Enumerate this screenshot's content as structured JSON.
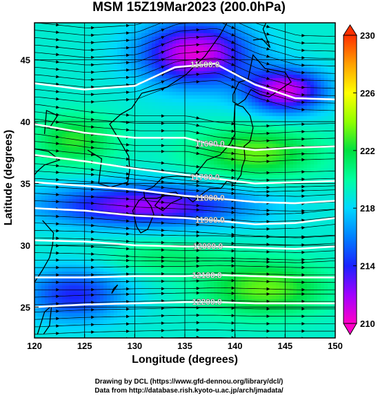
{
  "title": "MSM 15Z19Mar2023 (200.0hPa)",
  "credits": {
    "line1": "Drawing by DCL (https://www.gfd-dennou.org/library/dcl/)",
    "line2": "Data from http://database.rish.kyoto-u.ac.jp/arch/jmadata/"
  },
  "chart_data": {
    "type": "heatmap",
    "xlabel": "Longitude (degrees)",
    "ylabel": "Latitude  (degrees)",
    "xlim": [
      120,
      150
    ],
    "ylim": [
      22.5,
      48
    ],
    "xticks": [
      120,
      125,
      130,
      135,
      140,
      145,
      150
    ],
    "yticks": [
      25,
      30,
      35,
      40,
      45
    ],
    "colorbar": {
      "min": 210,
      "max": 230,
      "ticks": [
        210,
        214,
        218,
        222,
        226,
        230
      ],
      "colors": [
        "#ff00c8",
        "#a000ff",
        "#1a22ff",
        "#0080ff",
        "#00d8ff",
        "#00ffa0",
        "#00e040",
        "#90ff00",
        "#ffff00",
        "#ffa000",
        "#ff3000"
      ]
    },
    "contours": [
      {
        "label": "11500.0",
        "label_lon": 137.0,
        "points": [
          [
            120,
            43.1
          ],
          [
            125,
            42.6
          ],
          [
            130,
            42.9
          ],
          [
            134,
            44.4
          ],
          [
            138,
            44.7
          ],
          [
            142,
            43.0
          ],
          [
            146,
            41.9
          ],
          [
            150,
            41.8
          ]
        ]
      },
      {
        "label": "11600.0",
        "label_lon": 137.5,
        "points": [
          [
            120,
            39.8
          ],
          [
            125,
            39.1
          ],
          [
            130,
            38.7
          ],
          [
            135,
            38.7
          ],
          [
            138,
            38.1
          ],
          [
            142,
            37.7
          ],
          [
            146,
            37.9
          ],
          [
            150,
            38.0
          ]
        ]
      },
      {
        "label": "11700.0",
        "label_lon": 137.0,
        "points": [
          [
            120,
            37.3
          ],
          [
            125,
            36.8
          ],
          [
            130,
            36.2
          ],
          [
            135,
            35.7
          ],
          [
            138,
            35.4
          ],
          [
            142,
            35.0
          ],
          [
            146,
            35.1
          ],
          [
            150,
            35.2
          ]
        ]
      },
      {
        "label": "11800.0",
        "label_lon": 137.5,
        "points": [
          [
            120,
            35.1
          ],
          [
            125,
            34.8
          ],
          [
            130,
            34.5
          ],
          [
            135,
            34.0
          ],
          [
            138,
            33.8
          ],
          [
            142,
            33.5
          ],
          [
            146,
            33.4
          ],
          [
            150,
            33.6
          ]
        ]
      },
      {
        "label": "11900.0",
        "label_lon": 137.5,
        "points": [
          [
            120,
            33.0
          ],
          [
            125,
            32.8
          ],
          [
            130,
            32.4
          ],
          [
            135,
            32.2
          ],
          [
            138,
            32.0
          ],
          [
            142,
            31.7
          ],
          [
            146,
            31.8
          ],
          [
            150,
            32.2
          ]
        ]
      },
      {
        "label": "12000.0",
        "label_lon": 137.3,
        "points": [
          [
            120,
            30.4
          ],
          [
            125,
            30.3
          ],
          [
            130,
            30.0
          ],
          [
            135,
            29.9
          ],
          [
            138,
            29.9
          ],
          [
            142,
            29.8
          ],
          [
            146,
            29.7
          ],
          [
            150,
            29.9
          ]
        ]
      },
      {
        "label": "12100.0",
        "label_lon": 137.2,
        "points": [
          [
            120,
            27.4
          ],
          [
            125,
            27.4
          ],
          [
            130,
            27.5
          ],
          [
            135,
            27.5
          ],
          [
            138,
            27.6
          ],
          [
            142,
            27.5
          ],
          [
            146,
            27.4
          ],
          [
            150,
            27.4
          ]
        ]
      },
      {
        "label": "12200.0",
        "label_lon": 137.2,
        "points": [
          [
            120,
            25.0
          ],
          [
            125,
            25.2
          ],
          [
            130,
            25.3
          ],
          [
            135,
            25.4
          ],
          [
            138,
            25.4
          ],
          [
            142,
            25.3
          ],
          [
            146,
            25.3
          ],
          [
            150,
            25.3
          ]
        ]
      }
    ],
    "coastlines": [
      [
        [
          140.0,
          41.4
        ],
        [
          140.8,
          41.2
        ],
        [
          141.5,
          40.5
        ],
        [
          141.8,
          39.5
        ],
        [
          141.5,
          38.4
        ],
        [
          140.9,
          38.0
        ],
        [
          141.0,
          37.0
        ],
        [
          140.7,
          36.3
        ],
        [
          140.6,
          35.7
        ],
        [
          140.0,
          35.0
        ],
        [
          139.2,
          35.2
        ],
        [
          138.6,
          34.6
        ],
        [
          137.5,
          34.6
        ],
        [
          136.8,
          34.2
        ],
        [
          135.8,
          33.5
        ],
        [
          135.2,
          33.9
        ],
        [
          134.2,
          34.0
        ],
        [
          133.0,
          34.0
        ],
        [
          132.2,
          33.8
        ],
        [
          131.0,
          33.8
        ],
        [
          130.9,
          34.4
        ],
        [
          131.8,
          34.7
        ],
        [
          132.8,
          35.5
        ],
        [
          134.2,
          35.6
        ],
        [
          135.8,
          35.5
        ],
        [
          136.5,
          36.2
        ],
        [
          137.2,
          36.9
        ],
        [
          138.5,
          37.3
        ],
        [
          139.5,
          38.2
        ],
        [
          140.0,
          39.0
        ],
        [
          139.9,
          40.1
        ],
        [
          140.0,
          41.4
        ]
      ],
      [
        [
          130.9,
          33.9
        ],
        [
          131.6,
          33.2
        ],
        [
          131.9,
          32.5
        ],
        [
          131.3,
          31.3
        ],
        [
          130.6,
          31.0
        ],
        [
          130.2,
          31.5
        ],
        [
          129.8,
          32.8
        ],
        [
          130.4,
          33.6
        ],
        [
          130.9,
          33.9
        ]
      ],
      [
        [
          132.0,
          33.2
        ],
        [
          132.8,
          32.8
        ],
        [
          133.6,
          33.4
        ],
        [
          134.7,
          33.8
        ],
        [
          134.1,
          34.3
        ],
        [
          133.0,
          34.2
        ],
        [
          132.0,
          33.2
        ]
      ],
      [
        [
          139.8,
          41.6
        ],
        [
          140.3,
          41.4
        ],
        [
          141.0,
          41.8
        ],
        [
          141.6,
          42.6
        ],
        [
          142.5,
          42.2
        ],
        [
          143.4,
          42.0
        ],
        [
          145.6,
          43.2
        ],
        [
          145.0,
          44.0
        ],
        [
          143.0,
          44.3
        ],
        [
          141.8,
          45.4
        ],
        [
          141.3,
          43.4
        ],
        [
          140.4,
          43.2
        ],
        [
          139.8,
          42.2
        ],
        [
          139.8,
          41.6
        ]
      ],
      [
        [
          125.3,
          37.7
        ],
        [
          126.7,
          37.0
        ],
        [
          126.4,
          35.0
        ],
        [
          127.6,
          34.7
        ],
        [
          129.3,
          35.1
        ],
        [
          129.5,
          36.1
        ],
        [
          129.4,
          37.2
        ],
        [
          128.4,
          38.6
        ],
        [
          127.5,
          39.8
        ],
        [
          128.6,
          40.6
        ],
        [
          129.7,
          41.1
        ],
        [
          130.7,
          42.3
        ]
      ],
      [
        [
          120.0,
          39.9
        ],
        [
          121.5,
          39.5
        ],
        [
          122.3,
          40.5
        ],
        [
          121.2,
          40.9
        ],
        [
          121.0,
          39.0
        ]
      ],
      [
        [
          120.0,
          37.8
        ],
        [
          121.4,
          37.6
        ],
        [
          122.5,
          36.9
        ],
        [
          121.0,
          36.5
        ],
        [
          120.3,
          36.0
        ],
        [
          119.6,
          35.3
        ]
      ],
      [
        [
          120.8,
          32.0
        ],
        [
          121.9,
          31.0
        ],
        [
          121.8,
          30.0
        ],
        [
          121.5,
          29.0
        ],
        [
          120.8,
          28.0
        ],
        [
          120.0,
          27.0
        ]
      ],
      [
        [
          130.7,
          42.3
        ],
        [
          133.2,
          42.8
        ],
        [
          135.1,
          43.8
        ],
        [
          137.0,
          45.3
        ],
        [
          138.5,
          47.0
        ],
        [
          139.2,
          48.0
        ]
      ],
      [
        [
          141.8,
          46.6
        ],
        [
          142.7,
          46.7
        ],
        [
          143.5,
          46.0
        ],
        [
          142.8,
          47.5
        ],
        [
          143.1,
          48.0
        ]
      ],
      [
        [
          127.7,
          26.1
        ],
        [
          128.3,
          26.8
        ],
        [
          127.9,
          26.5
        ],
        [
          127.7,
          26.1
        ]
      ],
      [
        [
          120.3,
          22.8
        ],
        [
          121.0,
          24.6
        ],
        [
          121.7,
          25.1
        ],
        [
          121.5,
          23.5
        ],
        [
          120.9,
          22.8
        ]
      ]
    ]
  }
}
